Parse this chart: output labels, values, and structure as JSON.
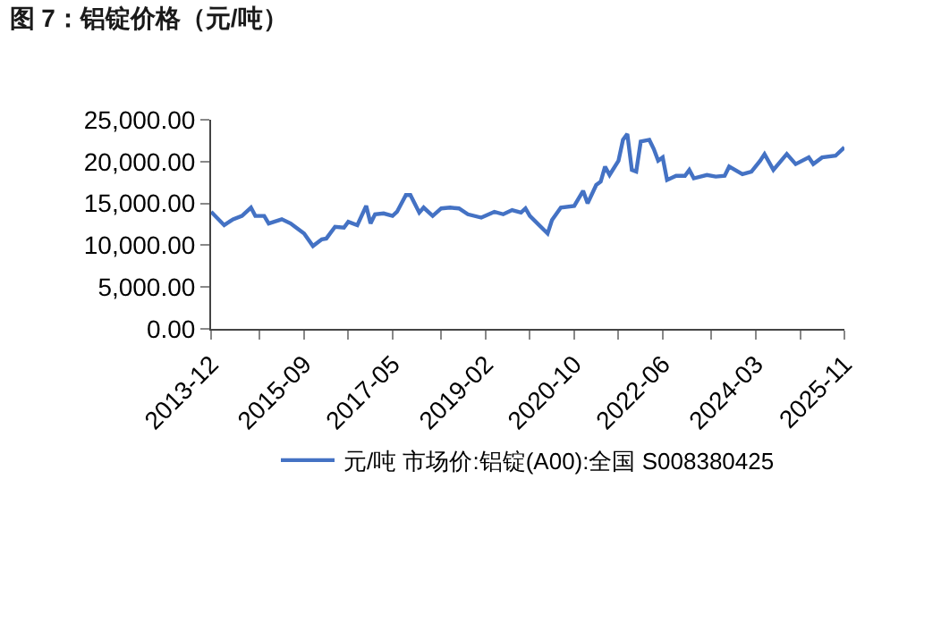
{
  "chart_data": {
    "type": "line",
    "title": "图 7：铝锭价格（元/吨）",
    "x": [
      "2013-12",
      "2014-03",
      "2014-05",
      "2014-07",
      "2014-09",
      "2014-10",
      "2014-12",
      "2015-01",
      "2015-04",
      "2015-06",
      "2015-08",
      "2015-09",
      "2015-11",
      "2016-01",
      "2016-02",
      "2016-04",
      "2016-06",
      "2016-07",
      "2016-09",
      "2016-11",
      "2016-12",
      "2017-01",
      "2017-03",
      "2017-05",
      "2017-06",
      "2017-08",
      "2017-09",
      "2017-11",
      "2017-12",
      "2018-02",
      "2018-04",
      "2018-06",
      "2018-08",
      "2018-10",
      "2019-01",
      "2019-04",
      "2019-06",
      "2019-08",
      "2019-10",
      "2019-11",
      "2019-12",
      "2020-04",
      "2020-05",
      "2020-07",
      "2020-10",
      "2020-12",
      "2021-01",
      "2021-03",
      "2021-04",
      "2021-05",
      "2021-06",
      "2021-08",
      "2021-09",
      "2021-10",
      "2021-11",
      "2021-12",
      "2022-01",
      "2022-03",
      "2022-04",
      "2022-05",
      "2022-06",
      "2022-07",
      "2022-09",
      "2022-11",
      "2022-12",
      "2023-01",
      "2023-04",
      "2023-06",
      "2023-08",
      "2023-09",
      "2023-12",
      "2024-02",
      "2024-04",
      "2024-05",
      "2024-07",
      "2024-10",
      "2024-12",
      "2025-03",
      "2025-04",
      "2025-06",
      "2025-09",
      "2025-11"
    ],
    "series": [
      {
        "name": "元/吨 市场价:铝锭(A00):全国 S008380425",
        "color": "#4472c4",
        "values": [
          14000,
          12400,
          13100,
          13500,
          14500,
          13500,
          13500,
          12600,
          13100,
          12600,
          11800,
          11400,
          9900,
          10700,
          10800,
          12200,
          12100,
          12800,
          12400,
          14700,
          12600,
          13700,
          13800,
          13500,
          14000,
          16000,
          16000,
          13900,
          14500,
          13500,
          14400,
          14500,
          14400,
          13700,
          13300,
          14000,
          13700,
          14200,
          13900,
          14400,
          13500,
          11400,
          13000,
          14500,
          14700,
          16500,
          15000,
          17200,
          17600,
          19400,
          18400,
          20100,
          22600,
          23300,
          19000,
          18800,
          22400,
          22600,
          21500,
          20100,
          20500,
          17800,
          18300,
          18300,
          19000,
          18000,
          18400,
          18200,
          18300,
          19400,
          18500,
          18800,
          20100,
          20900,
          19000,
          20900,
          19700,
          20500,
          19700,
          20500,
          20700,
          21700
        ]
      }
    ],
    "xlim": [
      "2013-12",
      "2025-11"
    ],
    "xticks": [
      {
        "value": "2013-12",
        "label": "2013-12"
      },
      {
        "value": "2014-11",
        "label": null
      },
      {
        "value": "2015-09",
        "label": "2015-09"
      },
      {
        "value": "2016-07",
        "label": null
      },
      {
        "value": "2017-05",
        "label": "2017-05"
      },
      {
        "value": "2018-04",
        "label": null
      },
      {
        "value": "2019-02",
        "label": "2019-02"
      },
      {
        "value": "2019-12",
        "label": null
      },
      {
        "value": "2020-10",
        "label": "2020-10"
      },
      {
        "value": "2021-08",
        "label": null
      },
      {
        "value": "2022-06",
        "label": "2022-06"
      },
      {
        "value": "2023-05",
        "label": null
      },
      {
        "value": "2024-03",
        "label": "2024-03"
      },
      {
        "value": "2025-01",
        "label": null
      },
      {
        "value": "2025-11",
        "label": "2025-11"
      }
    ],
    "ylim": [
      0,
      25000
    ],
    "yticks": [
      {
        "value": 0,
        "label": "0.00"
      },
      {
        "value": 5000,
        "label": "5,000.00"
      },
      {
        "value": 10000,
        "label": "10,000.00"
      },
      {
        "value": 15000,
        "label": "15,000.00"
      },
      {
        "value": 20000,
        "label": "20,000.00"
      },
      {
        "value": 25000,
        "label": "25,000.00"
      }
    ],
    "legend": "bottom",
    "marker": "none",
    "line_style": "solid"
  }
}
